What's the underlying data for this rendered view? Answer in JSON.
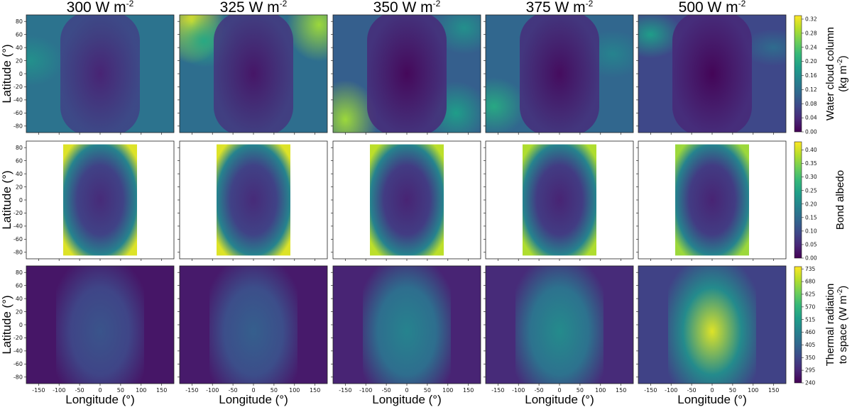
{
  "chart_data": {
    "type": "heatmap",
    "column_titles": [
      "300 W m",
      "325 W m",
      "350 W m",
      "375 W m",
      "500 W m"
    ],
    "column_title_superscript": "-2",
    "xlabel": "Longitude (°)",
    "ylabel": "Latitude (°)",
    "x_ticks": [
      -150,
      -100,
      -50,
      0,
      50,
      100,
      150
    ],
    "y_ticks": [
      80,
      60,
      40,
      20,
      0,
      -20,
      -40,
      -60,
      -80
    ],
    "xlim": [
      -180,
      180
    ],
    "ylim": [
      -90,
      90
    ],
    "colormap": [
      "#440154",
      "#482878",
      "#3e4989",
      "#31688e",
      "#26828e",
      "#1f9e89",
      "#35b779",
      "#6ece58",
      "#b5de2b",
      "#fde725"
    ],
    "rows": [
      {
        "name": "water-cloud",
        "colorbar_label_lines": [
          "Water cloud column",
          "(kg m",
          "-2",
          ")"
        ],
        "colorbar_ticks": [
          "0.32",
          "0.28",
          "0.24",
          "0.20",
          "0.16",
          "0.12",
          "0.08",
          "0.04",
          "0.00"
        ],
        "colorbar_range": [
          0,
          0.33
        ]
      },
      {
        "name": "bond-albedo",
        "colorbar_label_lines": [
          "Bond albedo"
        ],
        "colorbar_ticks": [
          "0.40",
          "0.35",
          "0.30",
          "0.25",
          "0.20",
          "0.15",
          "0.10",
          "0.05",
          "0.00"
        ],
        "colorbar_range": [
          0,
          0.43
        ]
      },
      {
        "name": "thermal-radiation",
        "colorbar_label_lines": [
          "Thermal radiation",
          "to space (W m",
          "-2",
          ")"
        ],
        "colorbar_ticks": [
          "735",
          "680",
          "625",
          "570",
          "515",
          "460",
          "405",
          "350",
          "295",
          "240"
        ],
        "colorbar_range": [
          240,
          745
        ]
      }
    ]
  }
}
